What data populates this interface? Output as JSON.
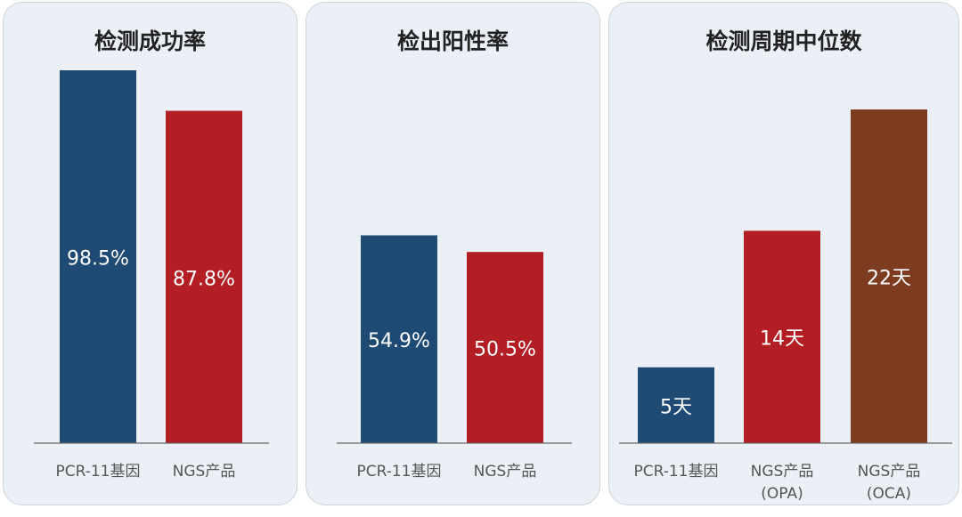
{
  "chart_data": [
    {
      "type": "bar",
      "title": "检测成功率",
      "categories": [
        "PCR-11基因",
        "NGS产品"
      ],
      "values": [
        98.5,
        87.8
      ],
      "labels": [
        "98.5%",
        "87.8%"
      ],
      "colors": [
        "#1f4a73",
        "#b31d24"
      ],
      "ylim": [
        0,
        100
      ],
      "grid": false
    },
    {
      "type": "bar",
      "title": "检出阳性率",
      "categories": [
        "PCR-11基因",
        "NGS产品"
      ],
      "values": [
        54.9,
        50.5
      ],
      "labels": [
        "54.9%",
        "50.5%"
      ],
      "colors": [
        "#1f4a73",
        "#b31d24"
      ],
      "ylim": [
        0,
        100
      ],
      "grid": false
    },
    {
      "type": "bar",
      "title": "检测周期中位数",
      "categories": [
        "PCR-11基因",
        "NGS产品\n(OPA)",
        "NGS产品\n(OCA)"
      ],
      "values": [
        5,
        14,
        22
      ],
      "labels": [
        "5天",
        "14天",
        "22天"
      ],
      "colors": [
        "#1f4a73",
        "#b31d24",
        "#7d3b20"
      ],
      "ylim": [
        0,
        24
      ],
      "grid": false
    }
  ]
}
